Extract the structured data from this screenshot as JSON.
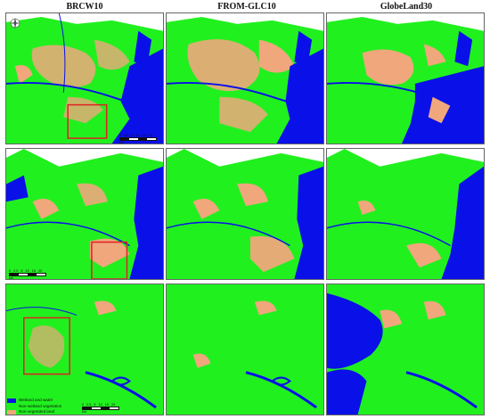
{
  "columns": [
    {
      "title": "BRCW10"
    },
    {
      "title": "FROM-GLC10"
    },
    {
      "title": "GlobeLand30"
    }
  ],
  "legend": [
    {
      "label": "Wetland and water",
      "color": "#0a10e8"
    },
    {
      "label": "Non-wetland vegetation",
      "color": "#21f01f"
    },
    {
      "label": "Non-vegetated land",
      "color": "#f0a77c"
    }
  ],
  "colors": {
    "water": "#0a10e8",
    "vegetation": "#21f01f",
    "land": "#f0a77c",
    "highlight_box": "#e02020",
    "background": "#ffffff"
  },
  "scale_bar": {
    "ticks": [
      "0",
      "2.5",
      "5",
      "10",
      "15",
      "20"
    ],
    "unit": "km"
  },
  "compass": {
    "label": "N",
    "icon": "compass-rose-icon"
  }
}
